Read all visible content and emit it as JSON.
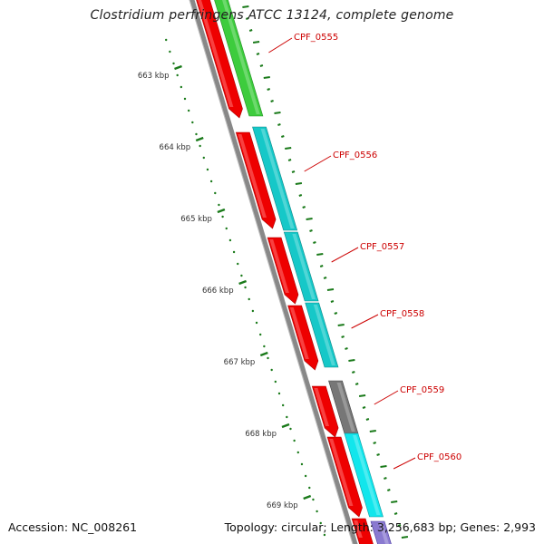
{
  "title": "Clostridium perfringens ATCC 13124, complete genome",
  "footer": {
    "accession": "Accession: NC_008261",
    "summary": "Topology: circular; Length: 3,256,683 bp; Genes: 2,993"
  },
  "ruler": {
    "labels": [
      "663 kbp",
      "664 kbp",
      "665 kbp",
      "666 kbp",
      "667 kbp",
      "668 kbp",
      "669 kbp"
    ],
    "tick_color": "#1a7a1a"
  },
  "genes": [
    {
      "label": "CPF_0555"
    },
    {
      "label": "CPF_0556"
    },
    {
      "label": "CPF_0557"
    },
    {
      "label": "CPF_0558"
    },
    {
      "label": "CPF_0559"
    },
    {
      "label": "CPF_0560"
    }
  ],
  "colors": {
    "backbone": "#888888",
    "cds": "#ee0000",
    "gene_label": "#cc0000",
    "feature_green": "#3dcc3d",
    "feature_cyan": "#16c8c8",
    "feature_cyan_bright": "#12e6ec",
    "feature_gray": "#777777",
    "feature_purple": "#8a7ad0"
  }
}
